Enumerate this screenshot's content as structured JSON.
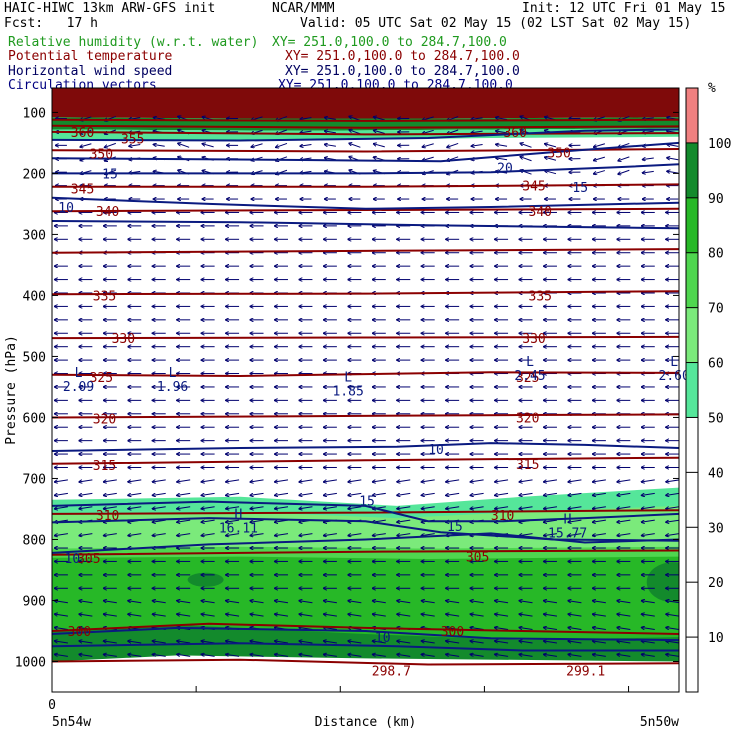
{
  "header": {
    "model": "HAIC-HIWC 13km ARW-GFS init",
    "org": "NCAR/MMM",
    "init": "Init: 12 UTC Fri 01 May 15",
    "fcst_label": "Fcst:",
    "fcst_value": "17 h",
    "valid": "Valid: 05 UTC Sat 02 May 15 (02 LST Sat 02 May 15)"
  },
  "fields": [
    {
      "name": "Relative humidity (w.r.t. water)",
      "xy": "XY= 251.0,100.0 to 284.7,100.0",
      "color": "#1f9a1f"
    },
    {
      "name": "Potential temperature",
      "xy": "XY= 251.0,100.0 to 284.7,100.0",
      "color": "#8b0000"
    },
    {
      "name": "Horizontal wind speed",
      "xy": "XY= 251.0,100.0 to 284.7,100.0",
      "color": "#000060"
    },
    {
      "name": "Circulation vectors",
      "xy": "XY= 251.0,100.0 to 284.7,100.0",
      "color": "#000080"
    }
  ],
  "chart_data": {
    "type": "heatmap",
    "ylabel": "Pressure (hPa)",
    "xlabel": "Distance (km)",
    "x_start_label": "0",
    "x_left_label": "5n54w",
    "x_right_label": "5n50w",
    "y_ticks": [
      100,
      200,
      300,
      400,
      500,
      600,
      700,
      800,
      900,
      1000
    ],
    "y_range": [
      60,
      1050
    ],
    "colorbar": {
      "unit": "%",
      "ticks": [
        10,
        20,
        30,
        40,
        50,
        60,
        70,
        80,
        90,
        100
      ],
      "bands": [
        {
          "from": 50,
          "to": 60,
          "color": "#55e69a"
        },
        {
          "from": 60,
          "to": 70,
          "color": "#7bea7b"
        },
        {
          "from": 70,
          "to": 80,
          "color": "#4fd64f"
        },
        {
          "from": 80,
          "to": 90,
          "color": "#27b827"
        },
        {
          "from": 90,
          "to": 100,
          "color": "#138a2c"
        },
        {
          "from": 100,
          "to": 110,
          "color": "#f08080"
        }
      ]
    },
    "theta_labels": [
      "360",
      "355",
      "350",
      "345",
      "340",
      "335",
      "330",
      "325",
      "320",
      "315",
      "310",
      "305",
      "300"
    ],
    "theta_minimum": "298.7",
    "theta_minimum_right": "299.1",
    "wind_labels": [
      "15",
      "20",
      "10",
      "15",
      "15",
      "15",
      "10"
    ],
    "wind_extrema": [
      {
        "type": "L",
        "value": "2.09"
      },
      {
        "type": "L",
        "value": "1.96"
      },
      {
        "type": "L",
        "value": "1.85"
      },
      {
        "type": "L",
        "value": "2.45"
      },
      {
        "type": "L",
        "value": "2.60"
      },
      {
        "type": "H",
        "value": "16.11"
      },
      {
        "type": "H",
        "value": "15.77"
      }
    ]
  }
}
